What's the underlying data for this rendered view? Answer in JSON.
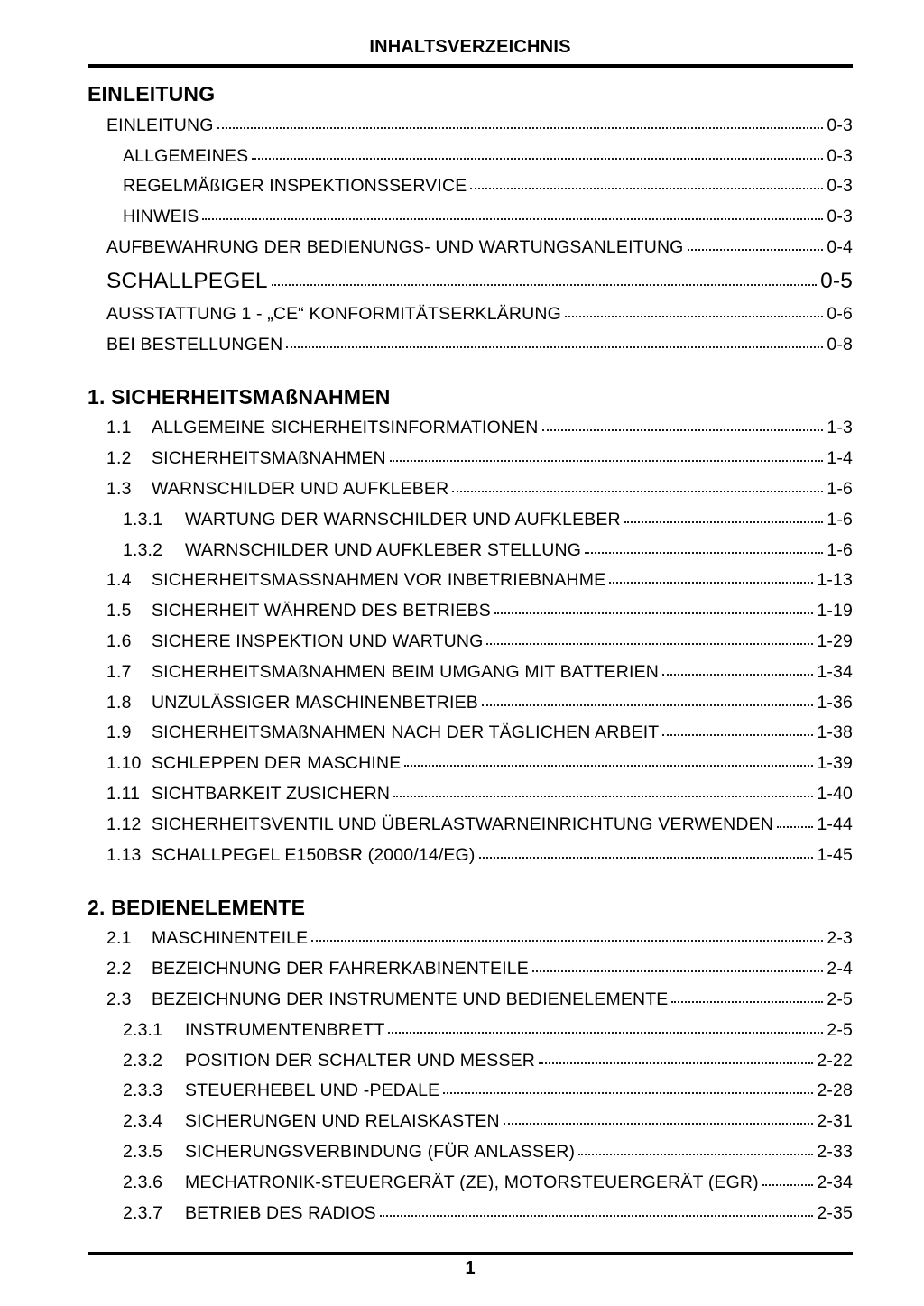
{
  "header": {
    "title": "INHALTSVERZEICHNIS"
  },
  "footer": {
    "page_number": "1"
  },
  "sections": [
    {
      "heading": "EINLEITUNG",
      "entries": [
        {
          "level": "l1",
          "num": "",
          "title": "EINLEITUNG",
          "page": "0-3"
        },
        {
          "level": "l2",
          "num": "",
          "title": "ALLGEMEINES",
          "page": "0-3"
        },
        {
          "level": "l2",
          "num": "",
          "title": "REGELMÄßIGER INSPEKTIONSSERVICE",
          "page": "0-3"
        },
        {
          "level": "l2",
          "num": "",
          "title": "HINWEIS",
          "page": "0-3"
        },
        {
          "level": "l1",
          "num": "",
          "title": "AUFBEWAHRUNG DER BEDIENUNGS- UND WARTUNGSANLEITUNG",
          "page": "0-4"
        },
        {
          "level": "l1",
          "num": "",
          "title": "SCHALLPEGEL",
          "page": "0-5",
          "large": true
        },
        {
          "level": "l1",
          "num": "",
          "title": "AUSSTATTUNG 1 - „CE“ KONFORMITÄTSERKLÄRUNG",
          "page": "0-6"
        },
        {
          "level": "l1",
          "num": "",
          "title": "BEI BESTELLUNGEN",
          "page": "0-8"
        }
      ]
    },
    {
      "heading": "1. SICHERHEITSMAßNAHMEN",
      "entries": [
        {
          "level": "n1",
          "num": "1.1",
          "title": "ALLGEMEINE SICHERHEITSINFORMATIONEN",
          "page": "1-3"
        },
        {
          "level": "n1",
          "num": "1.2",
          "title": "SICHERHEITSMAßNAHMEN",
          "page": "1-4"
        },
        {
          "level": "n1",
          "num": "1.3",
          "title": "WARNSCHILDER UND AUFKLEBER",
          "page": "1-6"
        },
        {
          "level": "n2",
          "num": "1.3.1",
          "title": "WARTUNG DER WARNSCHILDER UND AUFKLEBER",
          "page": "1-6"
        },
        {
          "level": "n2",
          "num": "1.3.2",
          "title": "WARNSCHILDER UND AUFKLEBER STELLUNG",
          "page": "1-6"
        },
        {
          "level": "n1",
          "num": "1.4",
          "title": "SICHERHEITSMASSNAHMEN VOR INBETRIEBNAHME",
          "page": "1-13"
        },
        {
          "level": "n1",
          "num": "1.5",
          "title": "SICHERHEIT WÄHREND DES BETRIEBS",
          "page": "1-19"
        },
        {
          "level": "n1",
          "num": "1.6",
          "title": "SICHERE INSPEKTION UND WARTUNG",
          "page": "1-29"
        },
        {
          "level": "n1",
          "num": "1.7",
          "title": "SICHERHEITSMAßNAHMEN BEIM UMGANG MIT BATTERIEN",
          "page": "1-34"
        },
        {
          "level": "n1",
          "num": "1.8",
          "title": "UNZULÄSSIGER MASCHINENBETRIEB",
          "page": "1-36"
        },
        {
          "level": "n1",
          "num": "1.9",
          "title": "SICHERHEITSMAßNAHMEN NACH DER TÄGLICHEN ARBEIT",
          "page": "1-38"
        },
        {
          "level": "n1",
          "num": "1.10",
          "title": "SCHLEPPEN DER MASCHINE",
          "page": "1-39"
        },
        {
          "level": "n1",
          "num": "1.11",
          "title": "SICHTBARKEIT ZUSICHERN",
          "page": "1-40"
        },
        {
          "level": "n1",
          "num": "1.12",
          "title": "SICHERHEITSVENTIL UND ÜBERLASTWARNEINRICHTUNG VERWENDEN",
          "page": "1-44"
        },
        {
          "level": "n1",
          "num": "1.13",
          "title": "SCHALLPEGEL E150BSR (2000/14/EG)",
          "page": "1-45"
        }
      ]
    },
    {
      "heading": "2. BEDIENELEMENTE",
      "entries": [
        {
          "level": "n1",
          "num": "2.1",
          "title": "MASCHINENTEILE",
          "page": "2-3"
        },
        {
          "level": "n1",
          "num": "2.2",
          "title": "BEZEICHNUNG DER FAHRERKABINENTEILE",
          "page": "2-4"
        },
        {
          "level": "n1",
          "num": "2.3",
          "title": "BEZEICHNUNG DER INSTRUMENTE UND BEDIENELEMENTE",
          "page": "2-5"
        },
        {
          "level": "n2",
          "num": "2.3.1",
          "title": "INSTRUMENTENBRETT",
          "page": "2-5"
        },
        {
          "level": "n2",
          "num": "2.3.2",
          "title": "POSITION DER SCHALTER UND MESSER",
          "page": "2-22"
        },
        {
          "level": "n2",
          "num": "2.3.3",
          "title": "STEUERHEBEL UND -PEDALE",
          "page": "2-28"
        },
        {
          "level": "n2",
          "num": "2.3.4",
          "title": "SICHERUNGEN UND RELAISKASTEN",
          "page": "2-31"
        },
        {
          "level": "n2",
          "num": "2.3.5",
          "title": "SICHERUNGSVERBINDUNG (FÜR ANLASSER)",
          "page": "2-33"
        },
        {
          "level": "n2",
          "num": "2.3.6",
          "title": "MECHATRONIK-STEUERGERÄT (ZE), MOTORSTEUERGERÄT (EGR)",
          "page": "2-34"
        },
        {
          "level": "n2",
          "num": "2.3.7",
          "title": "BETRIEB DES RADIOS",
          "page": "2-35"
        }
      ]
    }
  ]
}
